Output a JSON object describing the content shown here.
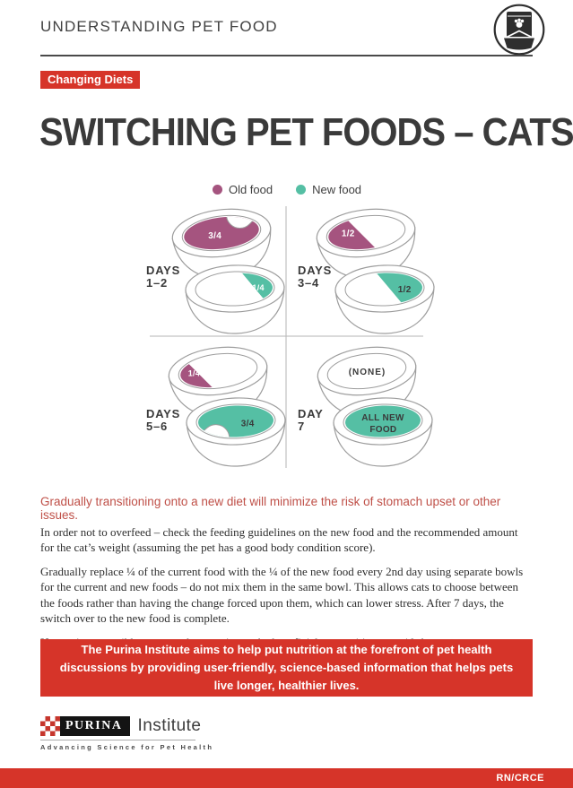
{
  "header": {
    "title": "UNDERSTANDING PET FOOD",
    "icon": "pet-food-bag-and-bowl"
  },
  "badge": "Changing Diets",
  "page_title": "SWITCHING PET FOODS – CATS",
  "legend": {
    "old": {
      "label": "Old food",
      "color": "#a5547f"
    },
    "new": {
      "label": "New food",
      "color": "#55bfa4"
    }
  },
  "diagram": {
    "quadrants": [
      {
        "label_line1": "DAYS",
        "label_line2": "1–2",
        "bowls": [
          {
            "food": "old",
            "variant": "tq-notch-right",
            "labels": [
              "3/4"
            ],
            "label_color": "#ffffff"
          },
          {
            "food": "new",
            "variant": "quarter-right",
            "labels": [
              "1/4"
            ],
            "label_color": "#ffffff"
          }
        ]
      },
      {
        "label_line1": "DAYS",
        "label_line2": "3–4",
        "bowls": [
          {
            "food": "old",
            "variant": "half-left",
            "labels": [
              "1/2"
            ],
            "label_color": "#ffffff"
          },
          {
            "food": "new",
            "variant": "half-right",
            "labels": [
              "1/2"
            ],
            "label_color": "#3a3a3a"
          }
        ]
      },
      {
        "label_line1": "DAYS",
        "label_line2": "5–6",
        "bowls": [
          {
            "food": "old",
            "variant": "quarter-left",
            "labels": [
              "1/4"
            ],
            "label_color": "#ffffff"
          },
          {
            "food": "new",
            "variant": "tq-notch-left",
            "labels": [
              "3/4"
            ],
            "label_color": "#3a3a3a"
          }
        ]
      },
      {
        "label_line1": "DAY",
        "label_line2": "7",
        "bowls": [
          {
            "food": "none",
            "variant": "none",
            "labels": [
              "(NONE)"
            ],
            "label_color": "#3a3a3a"
          },
          {
            "food": "new",
            "variant": "all",
            "labels": [
              "ALL NEW",
              "FOOD"
            ],
            "label_color": "#3a3a3a"
          }
        ]
      }
    ]
  },
  "lead": "Gradually transitioning onto a new diet will minimize the risk of stomach upset or other issues.",
  "paragraphs": [
    "In order not to overfeed – check the feeding guidelines on the new food and the recommended amount for the cat’s weight (assuming the pet has a good body condition score).",
    "Gradually replace ¼ of the current food with the ¼ of the new food every 2nd day using separate bowls for the current and new foods – do not mix them in the same bowl. This allows cats to choose between the foods rather than having the change forced upon them, which can lower stress. After 7 days, the switch over to the new food is complete.",
    "If a pet is susceptible to stomach upset, it may be beneficial to transition over 10 days."
  ],
  "callout": "The Purina Institute aims to help put nutrition at the forefront of pet health discussions by providing user-friendly, science-based information that helps pets live longer, healthier lives.",
  "footer": {
    "brand": "PURINA",
    "brand_suffix": "Institute",
    "tagline": "Advancing Science for Pet Health",
    "code": "RN/CRCE"
  },
  "colors": {
    "brand_red": "#d63429",
    "lead_red": "#bf4f47",
    "old_food": "#a5547f",
    "new_food": "#55bfa4",
    "dark_text": "#3a3a3a",
    "bowl_stroke": "#9d9d9d"
  }
}
